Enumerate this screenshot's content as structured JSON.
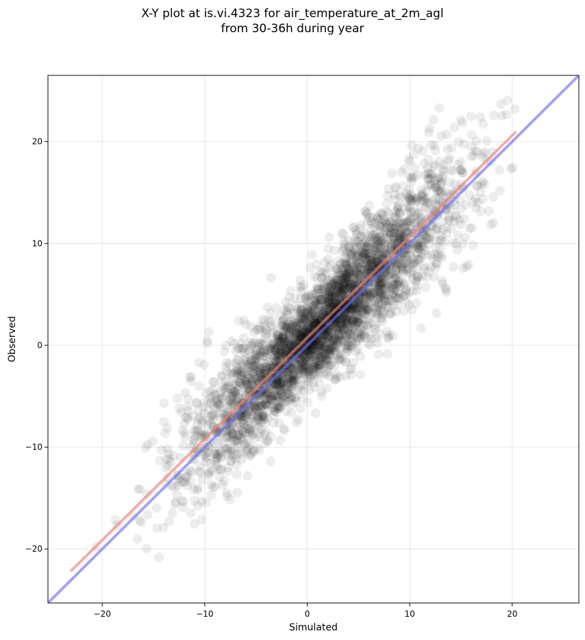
{
  "title_line1": "X-Y plot at is.vi.4323 for air_temperature_at_2m_agl",
  "title_line2": "from 30-36h during year",
  "chart_data": {
    "type": "scatter",
    "xlabel": "Simulated",
    "ylabel": "Observed",
    "xlim": [
      -25.3,
      26.5
    ],
    "ylim": [
      -25.3,
      26.5
    ],
    "xticks": [
      -20,
      -10,
      0,
      10,
      20
    ],
    "yticks": [
      -20,
      -10,
      0,
      10,
      20
    ],
    "xtick_labels": [
      "−20",
      "−10",
      "0",
      "10",
      "20"
    ],
    "ytick_labels": [
      "−20",
      "−10",
      "0",
      "10",
      "20"
    ],
    "grid": true,
    "point_color": "#000000",
    "point_alpha": 0.07,
    "approx_point_count": 3500,
    "point_cloud_summary": {
      "x_range": [
        -23.2,
        20.4
      ],
      "y_range": [
        -22.0,
        24.2
      ],
      "dense_core_x_range": [
        -6,
        8
      ],
      "dense_core_y_range": [
        -6,
        9
      ]
    },
    "series": [
      {
        "name": "",
        "role": "regression line",
        "color": "#f08080",
        "x": [
          -23.0,
          20.3
        ],
        "y": [
          -22.1,
          20.9
        ]
      },
      {
        "name": "",
        "role": "1:1 line",
        "color": "#7070ee",
        "x": [
          -25.3,
          26.5
        ],
        "y": [
          -25.3,
          26.5
        ]
      }
    ]
  }
}
